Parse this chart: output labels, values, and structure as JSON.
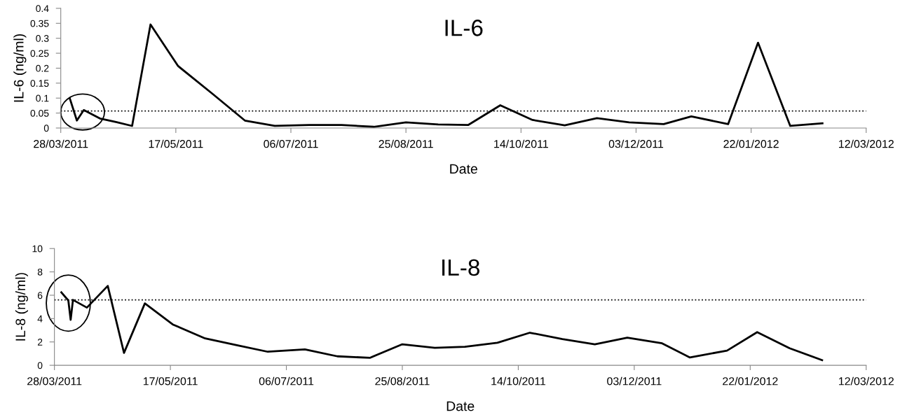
{
  "chart_data": [
    {
      "type": "line",
      "title": "IL-6",
      "xlabel": "Date",
      "ylabel": "IL-6 (ng/ml)",
      "marker": "none",
      "line_style": "solid",
      "grid": false,
      "legend": false,
      "series": [
        {
          "color": "#000000",
          "x": [
            "2011-04-01",
            "2011-04-04",
            "2011-04-07",
            "2011-04-14",
            "2011-04-21",
            "2011-04-28",
            "2011-05-06",
            "2011-05-18",
            "2011-06-02",
            "2011-06-16",
            "2011-06-29",
            "2011-07-14",
            "2011-07-28",
            "2011-08-11",
            "2011-08-25",
            "2011-09-08",
            "2011-09-21",
            "2011-10-05",
            "2011-10-19",
            "2011-11-02",
            "2011-11-16",
            "2011-11-30",
            "2011-12-15",
            "2011-12-27",
            "2012-01-12",
            "2012-01-25",
            "2012-02-08",
            "2012-02-22"
          ],
          "values": [
            0.097,
            0.025,
            0.06,
            0.032,
            0.02,
            0.007,
            0.346,
            0.207,
            0.114,
            0.025,
            0.007,
            0.01,
            0.01,
            0.004,
            0.019,
            0.012,
            0.01,
            0.076,
            0.027,
            0.009,
            0.033,
            0.019,
            0.013,
            0.039,
            0.013,
            0.285,
            0.007,
            0.016
          ]
        }
      ],
      "ref_lines": [
        {
          "axis": "y",
          "value": 0.057,
          "color": "#000000",
          "line_style": "dotted"
        }
      ],
      "xlim": [
        "2011-03-28",
        "2012-03-12"
      ],
      "xticks": [
        {
          "value": "2011-03-28",
          "label": "28/03/2011"
        },
        {
          "value": "2011-05-17",
          "label": "17/05/2011"
        },
        {
          "value": "2011-07-06",
          "label": "06/07/2011"
        },
        {
          "value": "2011-08-25",
          "label": "25/08/2011"
        },
        {
          "value": "2011-10-14",
          "label": "14/10/2011"
        },
        {
          "value": "2011-12-03",
          "label": "03/12/2011"
        },
        {
          "value": "2012-01-22",
          "label": "22/01/2012"
        },
        {
          "value": "2012-03-12",
          "label": "12/03/2012"
        }
      ],
      "ylim": [
        0,
        0.4
      ],
      "yticks": [
        0,
        0.05,
        0.1,
        0.15,
        0.2,
        0.25,
        0.3,
        0.35,
        0.4
      ]
    },
    {
      "type": "line",
      "title": "IL-8",
      "xlabel": "Date",
      "ylabel": "IL-8 (ng/ml)",
      "marker": "none",
      "line_style": "solid",
      "grid": false,
      "legend": false,
      "series": [
        {
          "color": "#000000",
          "x": [
            "2011-03-31",
            "2011-04-03",
            "2011-04-04",
            "2011-04-05",
            "2011-04-11",
            "2011-04-20",
            "2011-04-27",
            "2011-05-06",
            "2011-05-18",
            "2011-06-01",
            "2011-06-15",
            "2011-06-28",
            "2011-07-14",
            "2011-07-28",
            "2011-08-11",
            "2011-08-25",
            "2011-09-08",
            "2011-09-21",
            "2011-10-05",
            "2011-10-19",
            "2011-11-02",
            "2011-11-16",
            "2011-11-30",
            "2011-12-15",
            "2011-12-27",
            "2012-01-12",
            "2012-01-25",
            "2012-02-08",
            "2012-02-22"
          ],
          "values": [
            6.25,
            5.55,
            3.9,
            5.6,
            4.94,
            6.8,
            1.06,
            5.3,
            3.5,
            2.3,
            1.7,
            1.16,
            1.36,
            0.77,
            0.64,
            1.8,
            1.5,
            1.58,
            1.93,
            2.79,
            2.25,
            1.8,
            2.37,
            1.88,
            0.67,
            1.26,
            2.84,
            1.46,
            0.44
          ]
        }
      ],
      "ref_lines": [
        {
          "axis": "y",
          "value": 5.6,
          "color": "#000000",
          "line_style": "dotted"
        }
      ],
      "xlim": [
        "2011-03-28",
        "2012-03-12"
      ],
      "xticks": [
        {
          "value": "2011-03-28",
          "label": "28/03/2011"
        },
        {
          "value": "2011-05-17",
          "label": "17/05/2011"
        },
        {
          "value": "2011-07-06",
          "label": "06/07/2011"
        },
        {
          "value": "2011-08-25",
          "label": "25/08/2011"
        },
        {
          "value": "2011-10-14",
          "label": "14/10/2011"
        },
        {
          "value": "2011-12-03",
          "label": "03/12/2011"
        },
        {
          "value": "2012-01-22",
          "label": "22/01/2012"
        },
        {
          "value": "2012-03-12",
          "label": "12/03/2012"
        }
      ],
      "ylim": [
        0,
        10
      ],
      "yticks": [
        0,
        2,
        4,
        6,
        8,
        10
      ]
    }
  ]
}
